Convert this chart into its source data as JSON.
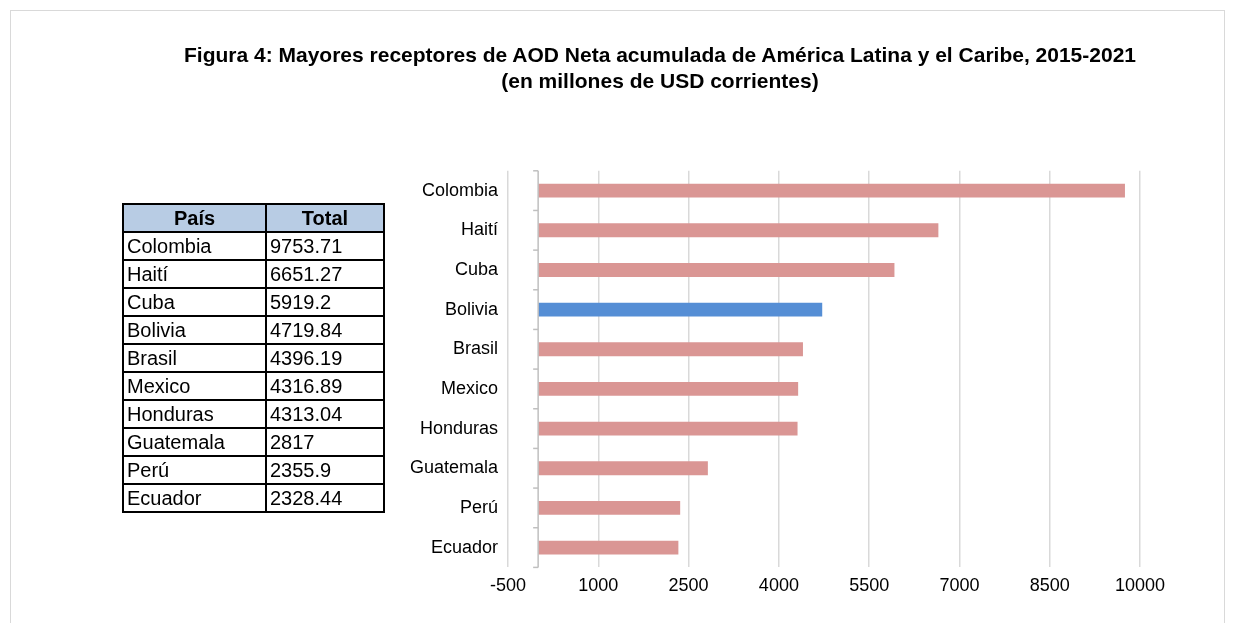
{
  "chart_data": [
    {
      "type": "other",
      "annotations": [
        "País",
        "Total"
      ],
      "categories": [
        "Colombia",
        "Haití",
        "Cuba",
        "Bolivia",
        "Brasil",
        "Mexico",
        "Honduras",
        "Guatemala",
        "Perú",
        "Ecuador"
      ],
      "value_labels": [
        "9753.71",
        "6651.27",
        "5919.2",
        "4719.84",
        "4396.19",
        "4316.89",
        "4313.04",
        "2817",
        "2355.9",
        "2328.44"
      ],
      "data_labels": true
    },
    {
      "type": "bar",
      "orientation": "horizontal",
      "title": "Figura 4: Mayores receptores de AOD Neta acumulada de América Latina y el Caribe, 2015-2021",
      "subtitle": "(en millones de USD corrientes)",
      "categories": [
        "Colombia",
        "Haití",
        "Cuba",
        "Bolivia",
        "Brasil",
        "Mexico",
        "Honduras",
        "Guatemala",
        "Perú",
        "Ecuador"
      ],
      "values": [
        9750,
        6650,
        5920,
        4720,
        4400,
        4320,
        4310,
        2820,
        2360,
        2330
      ],
      "colors": [
        "#da9694",
        "#da9694",
        "#da9694",
        "#558ed5",
        "#da9694",
        "#da9694",
        "#da9694",
        "#da9694",
        "#da9694",
        "#da9694"
      ],
      "xlim": [
        -500,
        10000
      ],
      "xticks": [
        -500,
        1000,
        2500,
        4000,
        5500,
        7000,
        8500,
        10000
      ],
      "grid": "x"
    }
  ]
}
